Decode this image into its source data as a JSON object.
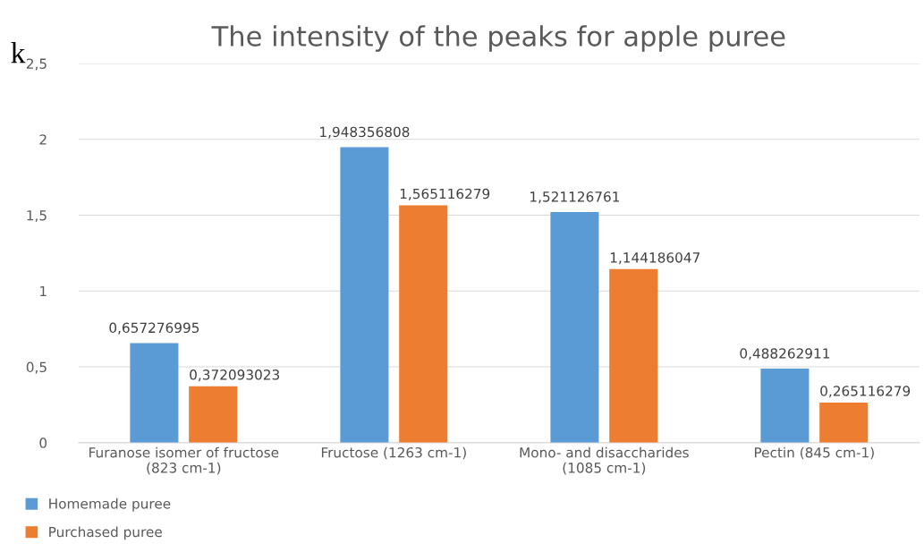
{
  "chart_data": {
    "type": "bar",
    "title": "The intensity of the peaks for apple puree",
    "ylabel": "k",
    "categories": [
      "Furanose isomer of fructose\n(823 cm-1)",
      "Fructose (1263 cm-1)",
      "Mono- and disaccharides\n(1085 cm-1)",
      "Pectin (845 cm-1)"
    ],
    "series": [
      {
        "name": "Homemade puree",
        "color": "#5b9bd5",
        "values": [
          0.657276995,
          1.948356808,
          1.521126761,
          0.488262911
        ],
        "value_labels": [
          "0,657276995",
          "1,948356808",
          "1,521126761",
          "0,488262911"
        ]
      },
      {
        "name": "Purchased puree",
        "color": "#ed7d31",
        "values": [
          0.372093023,
          1.565116279,
          1.144186047,
          0.265116279
        ],
        "value_labels": [
          "0,372093023",
          "1,565116279",
          "1,144186047",
          "0,265116279"
        ]
      }
    ],
    "ylim": [
      0,
      2.5
    ],
    "yticks": [
      0,
      {
        "value": 0.5,
        "label": "0,5"
      },
      1,
      {
        "value": 1.5,
        "label": "1,5"
      },
      2,
      {
        "value": 2.5,
        "label": "2,5"
      }
    ],
    "grid": "y",
    "legend": "bottom left"
  }
}
